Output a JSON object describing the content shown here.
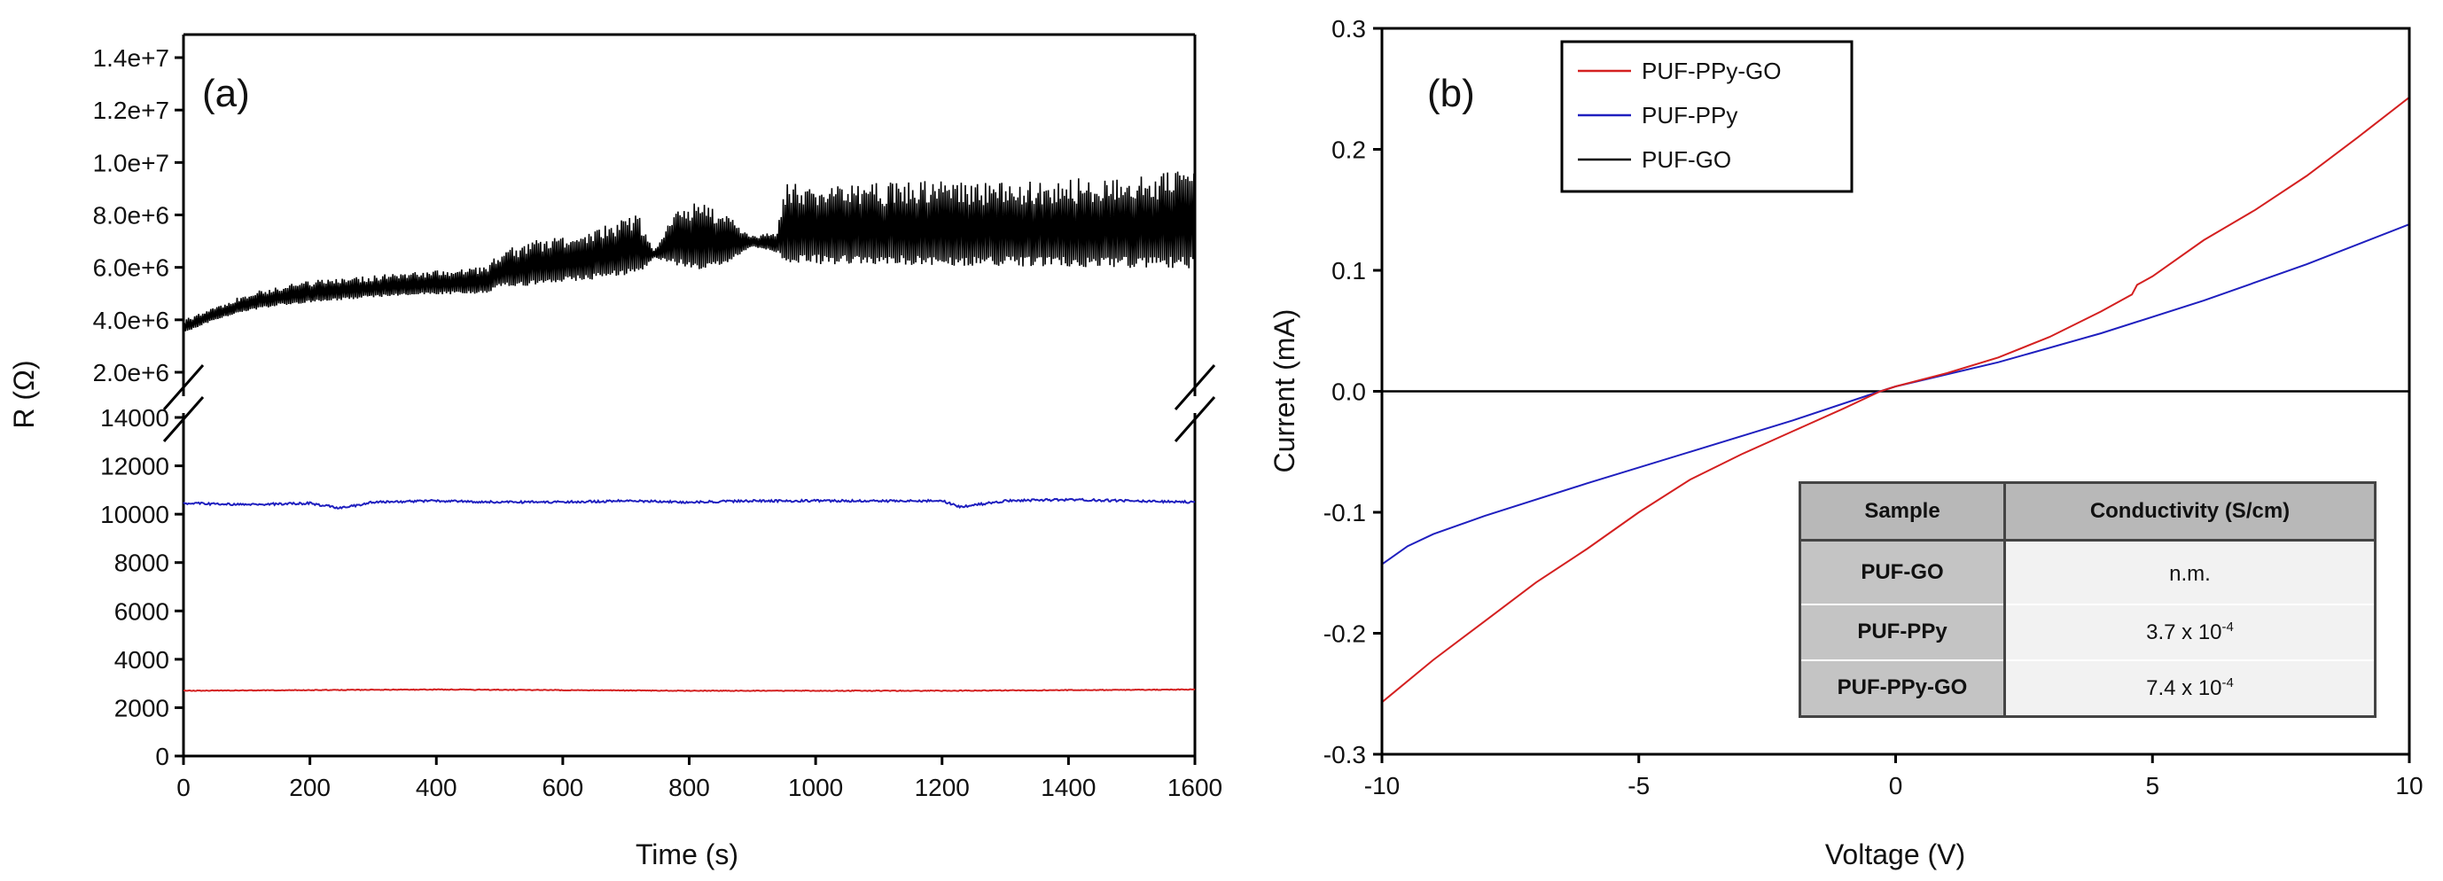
{
  "chart_data": [
    {
      "panel_label": "(a)",
      "type": "line",
      "xlabel": "Time (s)",
      "ylabel": "R (Ω)",
      "xlim": [
        0,
        1600
      ],
      "x_ticks": [
        "0",
        "200",
        "400",
        "600",
        "800",
        "1000",
        "1200",
        "1400",
        "1600"
      ],
      "y_axis_broken": true,
      "upper_ylim": [
        2000000,
        14000000
      ],
      "upper_y_ticks": [
        "2.0e+6",
        "4.0e+6",
        "6.0e+6",
        "8.0e+6",
        "1.0e+7",
        "1.2e+7",
        "1.4e+7"
      ],
      "lower_ylim": [
        0,
        14000
      ],
      "lower_y_ticks": [
        "0",
        "2000",
        "4000",
        "6000",
        "8000",
        "10000",
        "12000",
        "14000"
      ],
      "series": [
        {
          "color": "#000000",
          "style": "oscillating",
          "envelope": {
            "time": [
              0,
              50,
              100,
              150,
              200,
              300,
              400,
              480,
              500,
              550,
              650,
              700,
              720,
              745,
              780,
              820,
              860,
              900,
              940,
              950,
              1200,
              1400,
              1600
            ],
            "lower": [
              3400000,
              3900000,
              4200000,
              4400000,
              4500000,
              4700000,
              4800000,
              4800000,
              5000000,
              5000000,
              5200000,
              5300000,
              5300000,
              6300000,
              5700000,
              5400000,
              5800000,
              6700000,
              6400000,
              5600000,
              5500000,
              5400000,
              5300000
            ],
            "upper": [
              4000000,
              4500000,
              5000000,
              5300000,
              5500000,
              5700000,
              5900000,
              6100000,
              6600000,
              7000000,
              7500000,
              7900000,
              8000000,
              6700000,
              8200000,
              8700000,
              8000000,
              7200000,
              7400000,
              9200000,
              9300000,
              9400000,
              9700000
            ]
          }
        },
        {
          "color": "#1f1fbf",
          "x": [
            0,
            100,
            200,
            250,
            300,
            400,
            500,
            600,
            700,
            800,
            900,
            1000,
            1100,
            1200,
            1230,
            1300,
            1400,
            1500,
            1600
          ],
          "y": [
            10450,
            10400,
            10450,
            10250,
            10500,
            10550,
            10500,
            10500,
            10550,
            10500,
            10550,
            10550,
            10550,
            10550,
            10300,
            10550,
            10600,
            10550,
            10500
          ]
        },
        {
          "color": "#d42020",
          "x": [
            0,
            400,
            800,
            1200,
            1600
          ],
          "y": [
            2700,
            2750,
            2700,
            2700,
            2750
          ]
        }
      ]
    },
    {
      "panel_label": "(b)",
      "type": "line",
      "xlabel": "Voltage (V)",
      "ylabel": "Current  (mA)",
      "xlim": [
        -10,
        10
      ],
      "ylim": [
        -0.3,
        0.3
      ],
      "x_ticks": [
        "-10",
        "-5",
        "0",
        "5",
        "10"
      ],
      "y_ticks": [
        "-0.3",
        "-0.2",
        "-0.1",
        "0.0",
        "0.1",
        "0.2",
        "0.3"
      ],
      "legend_position": "top-left",
      "series": [
        {
          "name": "PUF-PPy-GO",
          "color": "#d42020",
          "x": [
            -10,
            -9,
            -8,
            -7,
            -6,
            -5,
            -4,
            -3,
            -2,
            -1,
            -0.3,
            0,
            1,
            2,
            3,
            4,
            4.6,
            4.7,
            5,
            6,
            7,
            8,
            9,
            10
          ],
          "y": [
            -0.257,
            -0.222,
            -0.19,
            -0.158,
            -0.13,
            -0.1,
            -0.073,
            -0.052,
            -0.033,
            -0.014,
            0,
            0.004,
            0.015,
            0.028,
            0.045,
            0.066,
            0.08,
            0.088,
            0.095,
            0.125,
            0.15,
            0.178,
            0.21,
            0.243
          ]
        },
        {
          "name": "PUF-PPy",
          "color": "#1f1fbf",
          "x": [
            -10,
            -9.5,
            -9,
            -8,
            -6,
            -4,
            -2,
            -0.3,
            0,
            2,
            4,
            6,
            8,
            10
          ],
          "y": [
            -0.143,
            -0.128,
            -0.118,
            -0.103,
            -0.076,
            -0.05,
            -0.024,
            0,
            0.004,
            0.024,
            0.048,
            0.075,
            0.105,
            0.138
          ]
        },
        {
          "name": "PUF-GO",
          "color": "#000000",
          "x": [
            -10,
            10
          ],
          "y": [
            0,
            0
          ]
        }
      ],
      "inset_table": {
        "headers": [
          "Sample",
          "Conductivity (S/cm)"
        ],
        "rows": [
          {
            "sample": "PUF-GO",
            "value": "n.m.",
            "exp": ""
          },
          {
            "sample": "PUF-PPy",
            "value": "3.7 x 10",
            "exp": "-4"
          },
          {
            "sample": "PUF-PPy-GO",
            "value": "7.4 x 10",
            "exp": "-4"
          }
        ]
      }
    }
  ]
}
